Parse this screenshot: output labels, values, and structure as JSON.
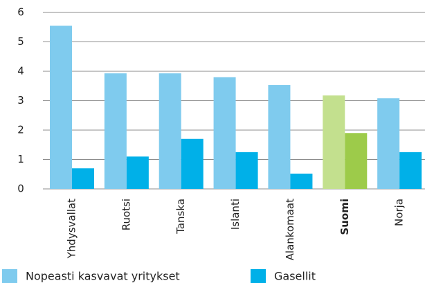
{
  "chart_data": {
    "type": "bar",
    "categories": [
      "Yhdysvallat",
      "Ruotsi",
      "Tanska",
      "Islanti",
      "Alankomaat",
      "Suomi",
      "Norja"
    ],
    "series": [
      {
        "name": "Nopeasti kasvavat yritykset",
        "color": "#7fcbee",
        "colors": [
          "#7fcbee",
          "#7fcbee",
          "#7fcbee",
          "#7fcbee",
          "#7fcbee",
          "#c3e08e",
          "#7fcbee"
        ],
        "values": [
          5.55,
          3.93,
          3.93,
          3.8,
          3.53,
          3.18,
          3.08
        ]
      },
      {
        "name": "Gasellit",
        "color": "#00b0e8",
        "colors": [
          "#00b0e8",
          "#00b0e8",
          "#00b0e8",
          "#00b0e8",
          "#00b0e8",
          "#9dcb4a",
          "#00b0e8"
        ],
        "values": [
          0.7,
          1.1,
          1.7,
          1.25,
          0.52,
          1.9,
          1.25
        ]
      }
    ],
    "ylim": [
      0,
      6
    ],
    "yticks": [
      0,
      1,
      2,
      3,
      4,
      5,
      6
    ],
    "grid": true,
    "legend": "bottom"
  }
}
